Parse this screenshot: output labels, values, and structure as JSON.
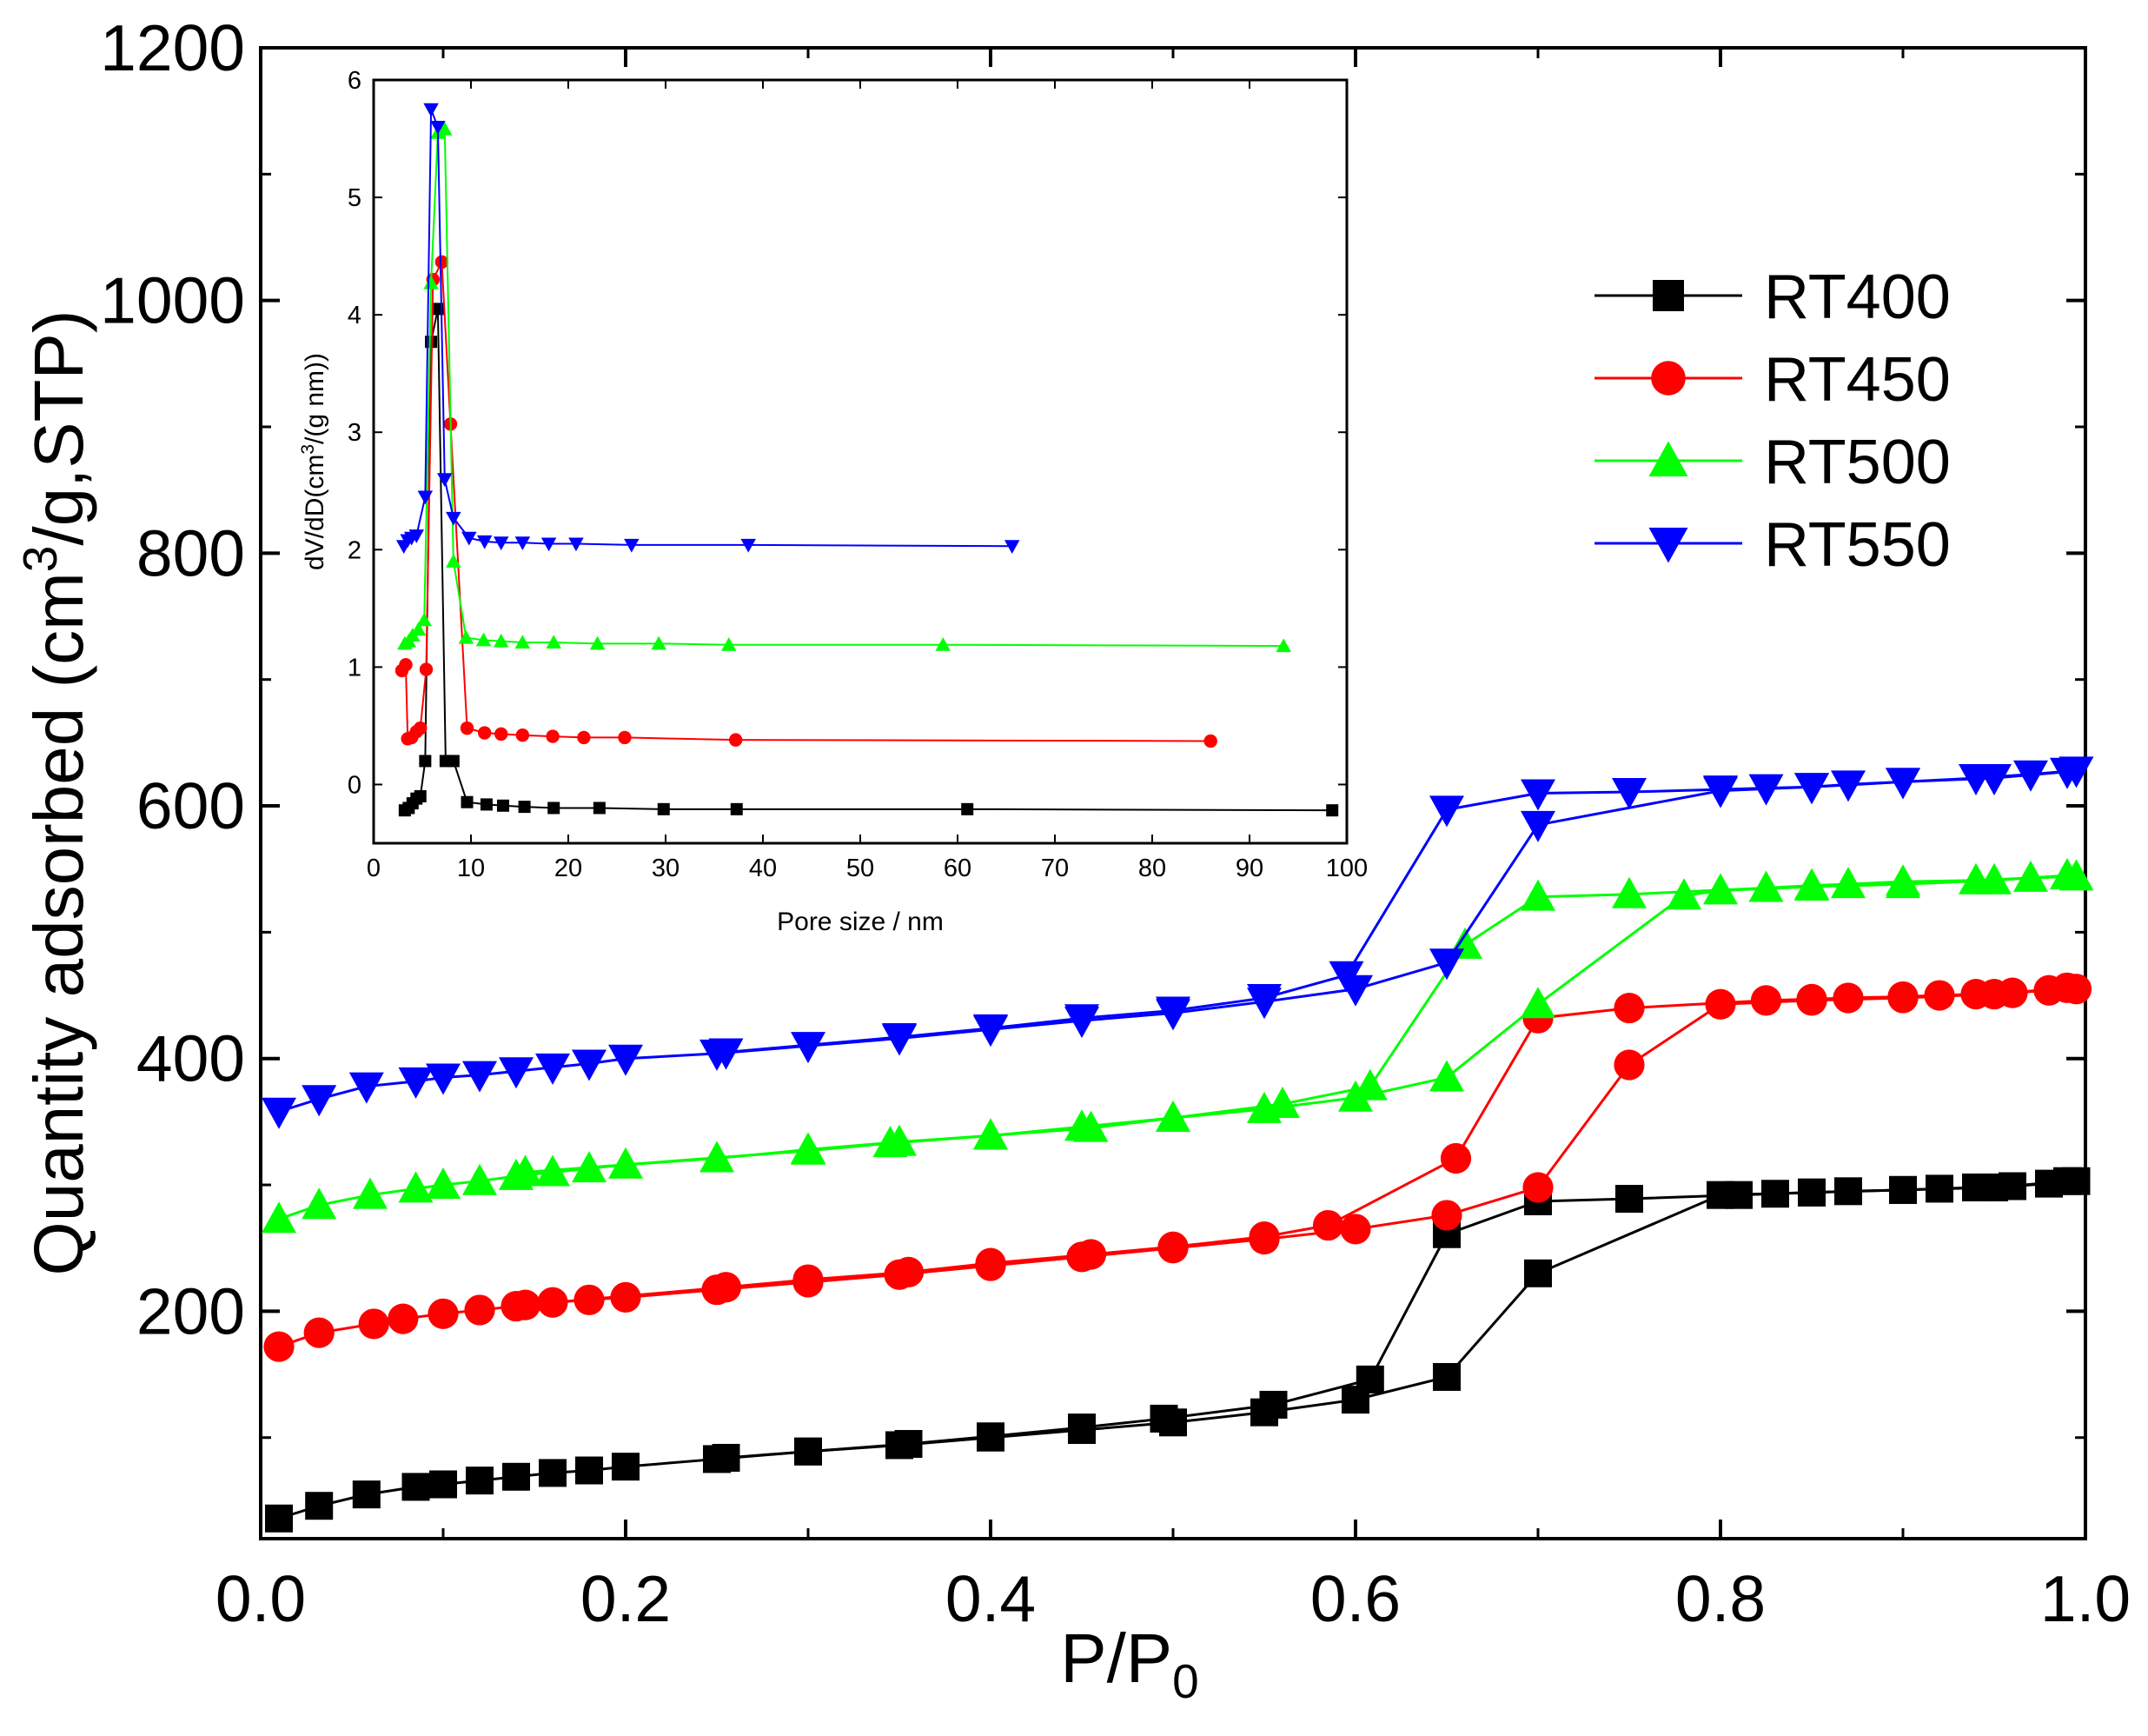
{
  "chart_data": [
    {
      "type": "line",
      "title": "",
      "xlabel_parts": {
        "main": "P/P",
        "sub": "0"
      },
      "ylabel_parts": {
        "pre": "Quantity adsorbed (cm",
        "sup": "3",
        "post": "/g,STP)"
      },
      "xlim": [
        0.0,
        1.0
      ],
      "ylim": [
        20,
        1200
      ],
      "x_ticks": [
        0.0,
        0.2,
        0.4,
        0.6,
        0.8,
        1.0
      ],
      "x_tick_labels": [
        "0.0",
        "0.2",
        "0.4",
        "0.6",
        "0.8",
        "1.0"
      ],
      "y_ticks": [
        200,
        400,
        600,
        800,
        1000,
        1200
      ],
      "y_tick_labels": [
        "200",
        "400",
        "600",
        "800",
        "1000",
        "1200"
      ],
      "legend_position": "right, middle-upper",
      "series": [
        {
          "name": "RT400",
          "color": "#000000",
          "marker": "square",
          "adsorption": {
            "x": [
              0.01,
              0.032,
              0.058,
              0.085,
              0.1,
              0.12,
              0.14,
              0.16,
              0.18,
              0.2,
              0.25,
              0.3,
              0.35,
              0.4,
              0.45,
              0.5,
              0.55,
              0.6,
              0.65,
              0.7,
              0.8,
              0.85,
              0.9,
              0.95,
              0.99
            ],
            "y": [
              36,
              46,
              55,
              61,
              63,
              66,
              69,
              72,
              74,
              77,
              83,
              89,
              94,
              100,
              106,
              112,
              120,
              130,
              148,
              230,
              292,
              294,
              296,
              298,
              303
            ]
          },
          "desorption": {
            "x": [
              0.995,
              0.98,
              0.96,
              0.94,
              0.92,
              0.9,
              0.87,
              0.85,
              0.83,
              0.81,
              0.75,
              0.7,
              0.65,
              0.608,
              0.555,
              0.495,
              0.45,
              0.4,
              0.355,
              0.3,
              0.255
            ],
            "y": [
              303,
              301,
              299,
              298,
              297,
              296,
              295,
              294,
              293,
              292,
              289,
              287,
              261,
              146,
              126,
              115,
              108,
              101,
              95,
              89,
              84
            ]
          }
        },
        {
          "name": "RT450",
          "color": "#ff0000",
          "marker": "circle",
          "adsorption": {
            "x": [
              0.01,
              0.032,
              0.062,
              0.078,
              0.1,
              0.12,
              0.14,
              0.16,
              0.18,
              0.2,
              0.25,
              0.3,
              0.35,
              0.4,
              0.45,
              0.5,
              0.55,
              0.6,
              0.65,
              0.7,
              0.75,
              0.8,
              0.85,
              0.9,
              0.95,
              0.99
            ],
            "y": [
              172,
              183,
              190,
              194,
              198,
              201,
              204,
              207,
              209,
              211,
              217,
              223,
              229,
              236,
              243,
              250,
              257,
              265,
              276,
              298,
              395,
              443,
              446,
              448,
              451,
              456
            ]
          },
          "desorption": {
            "x": [
              0.995,
              0.98,
              0.96,
              0.94,
              0.92,
              0.9,
              0.87,
              0.85,
              0.825,
              0.75,
              0.7,
              0.655,
              0.585,
              0.55,
              0.5,
              0.455,
              0.4,
              0.355,
              0.3,
              0.255,
              0.145
            ],
            "y": [
              455,
              454,
              452,
              451,
              450,
              449,
              448,
              447,
              446,
              440,
              432,
              321,
              268,
              259,
              251,
              245,
              238,
              231,
              225,
              219,
              205
            ]
          }
        },
        {
          "name": "RT500",
          "color": "#00ff00",
          "marker": "triangle-up",
          "adsorption": {
            "x": [
              0.01,
              0.032,
              0.06,
              0.085,
              0.1,
              0.12,
              0.14,
              0.16,
              0.18,
              0.2,
              0.25,
              0.3,
              0.35,
              0.4,
              0.45,
              0.5,
              0.55,
              0.6,
              0.65,
              0.7,
              0.78,
              0.8,
              0.85,
              0.9,
              0.95,
              0.99
            ],
            "y": [
              273,
              284,
              292,
              297,
              300,
              303,
              307,
              310,
              313,
              316,
              321,
              328,
              334,
              339,
              346,
              353,
              360,
              369,
              385,
              443,
              529,
              533,
              536,
              538,
              541,
              545
            ]
          },
          "desorption": {
            "x": [
              0.995,
              0.97,
              0.94,
              0.9,
              0.87,
              0.85,
              0.825,
              0.75,
              0.7,
              0.66,
              0.608,
              0.56,
              0.5,
              0.455,
              0.4,
              0.345,
              0.3,
              0.145
            ],
            "y": [
              544,
              543,
              541,
              540,
              538,
              537,
              535,
              530,
              528,
              490,
              378,
              364,
              353,
              345,
              339,
              333,
              327,
              310
            ]
          }
        },
        {
          "name": "RT550",
          "color": "#0000ff",
          "marker": "triangle-down",
          "adsorption": {
            "x": [
              0.01,
              0.032,
              0.058,
              0.085,
              0.1,
              0.12,
              0.14,
              0.16,
              0.18,
              0.2,
              0.25,
              0.3,
              0.35,
              0.4,
              0.45,
              0.5,
              0.55,
              0.6,
              0.65,
              0.7,
              0.8,
              0.85,
              0.9,
              0.95,
              0.99
            ],
            "y": [
              358,
              368,
              378,
              382,
              385,
              387,
              390,
              393,
              396,
              400,
              404,
              410,
              416,
              423,
              430,
              436,
              445,
              455,
              476,
              585,
              612,
              615,
              619,
              622,
              627
            ]
          },
          "desorption": {
            "x": [
              0.995,
              0.97,
              0.94,
              0.9,
              0.87,
              0.85,
              0.825,
              0.8,
              0.75,
              0.7,
              0.65,
              0.595,
              0.55,
              0.5,
              0.45,
              0.4,
              0.35,
              0.255
            ],
            "y": [
              628,
              625,
              622,
              619,
              617,
              615,
              614,
              613,
              611,
              610,
              597,
              466,
              448,
              438,
              432,
              424,
              417,
              405
            ]
          }
        }
      ]
    },
    {
      "type": "line",
      "title": "",
      "xlabel": "Pore size / nm",
      "ylabel_parts": {
        "pre": "dV/dD(cm",
        "sup": "3",
        "post": "/(g nm))"
      },
      "xlim": [
        0,
        100
      ],
      "ylim": [
        -0.5,
        6
      ],
      "x_ticks": [
        0,
        10,
        20,
        30,
        40,
        50,
        60,
        70,
        80,
        90,
        100
      ],
      "x_tick_labels": [
        "0",
        "10",
        "20",
        "30",
        "40",
        "50",
        "60",
        "70",
        "80",
        "90",
        "100"
      ],
      "y_ticks": [
        0,
        1,
        2,
        3,
        4,
        5,
        6
      ],
      "y_tick_labels": [
        "0",
        "1",
        "2",
        "3",
        "4",
        "5",
        "6"
      ],
      "series": [
        {
          "name": "RT400",
          "color": "#000000",
          "marker": "square",
          "x": [
            3.2,
            3.6,
            4.0,
            4.4,
            4.8,
            5.3,
            5.9,
            6.6,
            7.4,
            8.2,
            9.6,
            11.6,
            13.3,
            15.5,
            18.5,
            23.2,
            29.8,
            37.3,
            61.0,
            98.5
          ],
          "y": [
            -0.22,
            -0.2,
            -0.16,
            -0.12,
            -0.1,
            0.2,
            3.77,
            4.05,
            0.2,
            0.2,
            -0.15,
            -0.17,
            -0.18,
            -0.19,
            -0.2,
            -0.2,
            -0.21,
            -0.21,
            -0.21,
            -0.22
          ]
        },
        {
          "name": "RT450",
          "color": "#ff0000",
          "marker": "circle",
          "x": [
            2.9,
            3.3,
            3.5,
            3.9,
            4.4,
            4.8,
            5.4,
            6.1,
            7.0,
            7.9,
            9.6,
            11.4,
            13.1,
            15.3,
            18.4,
            21.6,
            25.8,
            37.2,
            86.0
          ],
          "y": [
            0.97,
            1.02,
            0.39,
            0.4,
            0.45,
            0.48,
            0.98,
            4.3,
            4.45,
            3.07,
            0.48,
            0.44,
            0.43,
            0.42,
            0.41,
            0.4,
            0.4,
            0.38,
            0.37
          ]
        },
        {
          "name": "RT500",
          "color": "#00ff00",
          "marker": "triangle-up",
          "x": [
            3.2,
            3.6,
            4.0,
            4.6,
            5.2,
            5.9,
            6.6,
            7.3,
            8.2,
            9.5,
            11.3,
            13.1,
            15.3,
            18.5,
            23.0,
            29.3,
            36.5,
            58.5,
            93.5
          ],
          "y": [
            1.2,
            1.22,
            1.27,
            1.32,
            1.4,
            4.27,
            5.55,
            5.58,
            1.9,
            1.25,
            1.23,
            1.22,
            1.21,
            1.21,
            1.2,
            1.2,
            1.19,
            1.19,
            1.18
          ]
        },
        {
          "name": "RT550",
          "color": "#0000ff",
          "marker": "triangle-down",
          "x": [
            3.1,
            3.5,
            3.9,
            4.4,
            5.3,
            5.9,
            6.6,
            7.3,
            8.2,
            9.8,
            11.4,
            13.1,
            15.3,
            18.0,
            20.8,
            26.5,
            38.5,
            65.6
          ],
          "y": [
            2.03,
            2.08,
            2.1,
            2.12,
            2.45,
            5.75,
            5.6,
            2.6,
            2.27,
            2.1,
            2.07,
            2.06,
            2.06,
            2.05,
            2.05,
            2.04,
            2.04,
            2.03
          ]
        }
      ]
    }
  ]
}
